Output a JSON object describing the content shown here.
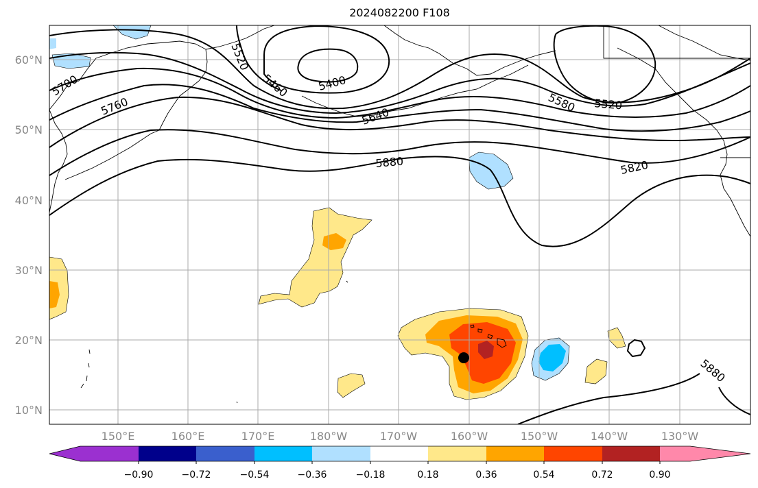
{
  "title": "2024082200 F108",
  "latitude_labels": [
    "60°N",
    "50°N",
    "40°N",
    "30°N",
    "20°N",
    "10°N"
  ],
  "longitude_labels": [
    "150°E",
    "160°E",
    "170°E",
    "180°W",
    "170°W",
    "160°W",
    "150°W",
    "140°W",
    "130°W"
  ],
  "contour_labels": [
    "5700",
    "5760",
    "5520",
    "5460",
    "5400",
    "5640",
    "5580",
    "5520",
    "5880",
    "5820",
    "5880"
  ],
  "colorbar": {
    "tick_labels": [
      "−0.90",
      "−0.72",
      "−0.54",
      "−0.36",
      "−0.18",
      "0.18",
      "0.36",
      "0.54",
      "0.72",
      "0.90"
    ],
    "colors": [
      "#9b30d0",
      "#00008b",
      "#3a5fcd",
      "#00bfff",
      "#b0e0ff",
      "#ffffff",
      "#ffe88a",
      "#ffa500",
      "#ff4500",
      "#b22222",
      "#ff88aa"
    ]
  },
  "colors": {
    "light_yellow": "#ffe88a",
    "orange": "#ffa500",
    "red_orange": "#ff4500",
    "dark_red": "#b22222",
    "light_blue": "#b0e0ff",
    "deep_sky_blue": "#00bfff",
    "grid": "#aaaaaa"
  }
}
